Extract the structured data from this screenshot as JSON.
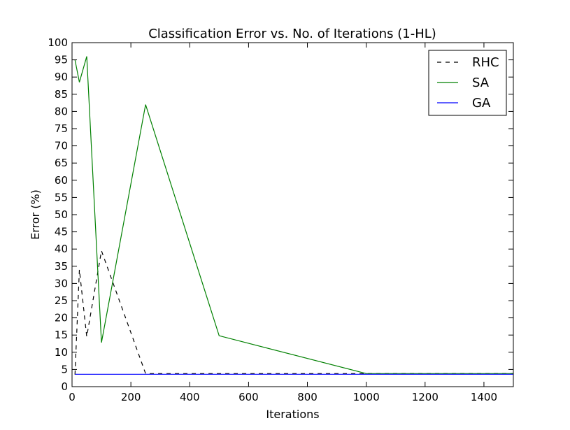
{
  "chart_data": {
    "type": "line",
    "title": "Classification Error vs. No. of Iterations (1-HL)",
    "xlabel": "Iterations",
    "ylabel": "Error (%)",
    "xlim": [
      0,
      1500
    ],
    "ylim": [
      0,
      100
    ],
    "xticks": [
      0,
      200,
      400,
      600,
      800,
      1000,
      1200,
      1400
    ],
    "yticks": [
      0,
      5,
      10,
      15,
      20,
      25,
      30,
      35,
      40,
      45,
      50,
      55,
      60,
      65,
      70,
      75,
      80,
      85,
      90,
      95,
      100
    ],
    "grid": false,
    "legend_position": "top-right",
    "series": [
      {
        "name": "RHC",
        "color": "#000000",
        "style": "dashed",
        "x": [
          10,
          25,
          50,
          100,
          250,
          500,
          1000,
          1500
        ],
        "y": [
          3.5,
          34,
          14.5,
          39.5,
          3.8,
          3.8,
          3.8,
          3.8
        ]
      },
      {
        "name": "SA",
        "color": "#008000",
        "style": "solid",
        "x": [
          10,
          25,
          50,
          100,
          250,
          500,
          1000,
          1500
        ],
        "y": [
          95,
          88.5,
          96,
          12.8,
          82,
          14.8,
          3.8,
          3.8
        ]
      },
      {
        "name": "GA",
        "color": "#0000ff",
        "style": "solid",
        "x": [
          10,
          25,
          50,
          100,
          250,
          500,
          1000,
          1500
        ],
        "y": [
          3.6,
          3.6,
          3.6,
          3.6,
          3.6,
          3.6,
          3.6,
          3.6
        ]
      }
    ]
  }
}
